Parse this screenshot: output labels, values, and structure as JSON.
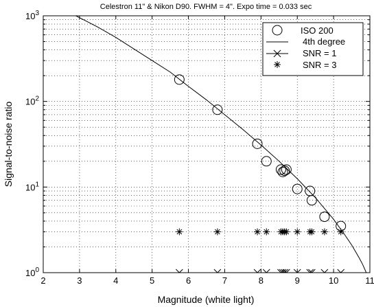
{
  "chart_data": {
    "type": "scatter",
    "title": "Celestron 11\" & Nikon D90. FWHM = 4\".  Expo time = 0.033 sec",
    "xlabel": "Magnitude  (white light)",
    "ylabel": "Signal-to-noise ratio",
    "xlim": [
      2,
      11
    ],
    "ylim": [
      1,
      1000
    ],
    "yscale": "log",
    "grid": true,
    "legend_position": "top-right",
    "x_ticks": [
      "2",
      "3",
      "4",
      "5",
      "6",
      "7",
      "8",
      "9",
      "10",
      "11"
    ],
    "y_ticks": [
      {
        "base": "10",
        "exp": "0"
      },
      {
        "base": "10",
        "exp": "1"
      },
      {
        "base": "10",
        "exp": "2"
      },
      {
        "base": "10",
        "exp": "3"
      }
    ],
    "legend": [
      "ISO 200",
      "4th degree",
      "SNR = 1",
      "SNR = 3"
    ],
    "series": [
      {
        "name": "ISO 200",
        "kind": "circle",
        "x": [
          5.75,
          6.8,
          7.9,
          8.15,
          8.55,
          8.6,
          8.7,
          8.65,
          9.0,
          9.35,
          9.4,
          9.75,
          10.2
        ],
        "y": [
          180,
          80,
          32,
          20,
          16,
          15,
          16,
          15.5,
          9.5,
          9,
          7,
          4.5,
          3.5
        ]
      },
      {
        "name": "4th degree",
        "kind": "line",
        "x": [
          2.9,
          3.5,
          4.0,
          4.5,
          5.0,
          5.5,
          6.0,
          6.5,
          7.0,
          7.5,
          8.0,
          8.5,
          9.0,
          9.5,
          10.0,
          10.3,
          10.5,
          10.7,
          10.8,
          10.9
        ],
        "y": [
          1000,
          740,
          560,
          410,
          300,
          220,
          150,
          104,
          70,
          47,
          31,
          20,
          12.5,
          7.5,
          4.2,
          2.8,
          2.1,
          1.5,
          1.25,
          1.0
        ]
      },
      {
        "name": "SNR = 1",
        "kind": "x-line",
        "x": [
          5.75,
          6.8,
          7.9,
          8.15,
          8.55,
          8.6,
          8.65,
          8.7,
          9.0,
          9.35,
          9.4,
          9.75,
          10.2
        ],
        "y": [
          1,
          1,
          1,
          1,
          1,
          1,
          1,
          1,
          1,
          1,
          1,
          1,
          1
        ]
      },
      {
        "name": "SNR = 3",
        "kind": "star",
        "x": [
          5.75,
          6.8,
          7.9,
          8.15,
          8.55,
          8.6,
          8.65,
          8.7,
          9.0,
          9.35,
          9.4,
          9.75,
          10.2
        ],
        "y": [
          3,
          3,
          3,
          3,
          3,
          3,
          3,
          3,
          3,
          3,
          3,
          3,
          3
        ]
      }
    ]
  }
}
